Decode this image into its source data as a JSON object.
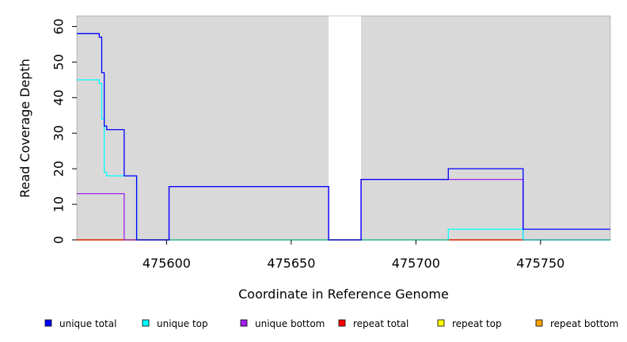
{
  "chart_data": {
    "type": "line",
    "step": true,
    "xlabel": "Coordinate in Reference Genome",
    "ylabel": "Read Coverage Depth",
    "xlim": [
      475564,
      475778
    ],
    "ylim": [
      0,
      63
    ],
    "xticks": [
      475600,
      475650,
      475700,
      475750
    ],
    "yticks": [
      0,
      10,
      20,
      30,
      40,
      50,
      60
    ],
    "background": "#d9d9d9",
    "gaps": [
      [
        475665,
        475678
      ]
    ],
    "legend_position": "bottom",
    "series": [
      {
        "name": "unique total",
        "color": "#0000ff",
        "x": [
          475564,
          475573,
          475574,
          475575,
          475576,
          475578,
          475583,
          475588,
          475601,
          475665,
          475678,
          475713,
          475743,
          475778
        ],
        "values": [
          58,
          57,
          47,
          32,
          31,
          31,
          18,
          0,
          15,
          0,
          17,
          20,
          3,
          3
        ]
      },
      {
        "name": "unique top",
        "color": "#00ffff",
        "x": [
          475564,
          475573,
          475574,
          475575,
          475576,
          475578,
          475588,
          475601,
          475665,
          475678,
          475713,
          475743,
          475778
        ],
        "values": [
          45,
          44,
          34,
          19,
          18,
          18,
          0,
          0,
          0,
          0,
          3,
          0,
          0
        ]
      },
      {
        "name": "unique bottom",
        "color": "#a020f0",
        "x": [
          475564,
          475583,
          475601,
          475665,
          475678,
          475713,
          475743,
          475778
        ],
        "values": [
          13,
          0,
          15,
          0,
          17,
          17,
          0,
          0
        ]
      },
      {
        "name": "repeat total",
        "color": "#ff0000",
        "x": [
          475564,
          475778
        ],
        "values": [
          0,
          0
        ]
      },
      {
        "name": "repeat top",
        "color": "#ffff00",
        "x": [
          475564,
          475778
        ],
        "values": [
          0,
          0
        ]
      },
      {
        "name": "repeat bottom",
        "color": "#ffa500",
        "x": [
          475564,
          475778
        ],
        "values": [
          0,
          0
        ]
      }
    ]
  }
}
